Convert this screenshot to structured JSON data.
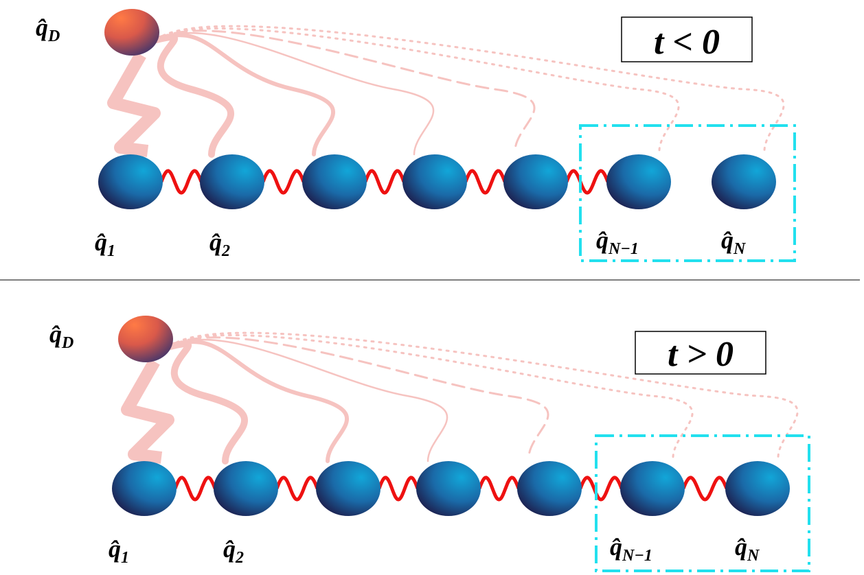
{
  "panels": [
    {
      "condition": "t < 0",
      "labels": [
        {
          "base": "q̂",
          "sub": "D"
        },
        {
          "base": "q̂",
          "sub": "1"
        },
        {
          "base": "q̂",
          "sub": "2"
        },
        {
          "base": "q̂",
          "sub": "N−1"
        },
        {
          "base": "q̂",
          "sub": "N"
        }
      ]
    },
    {
      "condition": "t > 0",
      "labels": [
        {
          "base": "q̂",
          "sub": "D"
        },
        {
          "base": "q̂",
          "sub": "1"
        },
        {
          "base": "q̂",
          "sub": "2"
        },
        {
          "base": "q̂",
          "sub": "N−1"
        },
        {
          "base": "q̂",
          "sub": "N"
        }
      ]
    }
  ]
}
